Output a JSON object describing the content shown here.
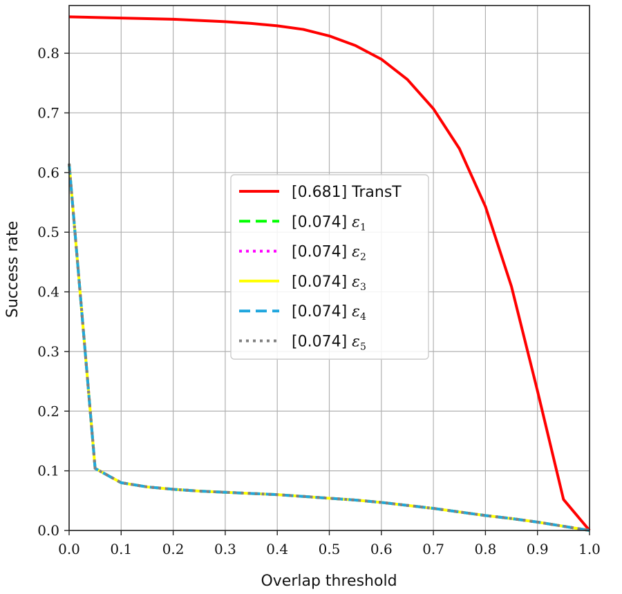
{
  "chart_data": {
    "type": "line",
    "xlabel": "Overlap threshold",
    "ylabel": "Success rate",
    "xlim": [
      0.0,
      1.0
    ],
    "ylim": [
      0.0,
      0.88
    ],
    "grid": true,
    "legend_position": "center-right",
    "x_ticks": [
      "0.0",
      "0.1",
      "0.2",
      "0.3",
      "0.4",
      "0.5",
      "0.6",
      "0.7",
      "0.8",
      "0.9",
      "1.0"
    ],
    "y_ticks": [
      "0.0",
      "0.1",
      "0.2",
      "0.3",
      "0.4",
      "0.5",
      "0.6",
      "0.7",
      "0.8"
    ],
    "x": [
      0.0,
      0.05,
      0.1,
      0.15,
      0.2,
      0.25,
      0.3,
      0.35,
      0.4,
      0.45,
      0.5,
      0.55,
      0.6,
      0.65,
      0.7,
      0.75,
      0.8,
      0.85,
      0.9,
      0.95,
      1.0
    ],
    "series": [
      {
        "name": "[0.681] TransT",
        "color": "#ff0000",
        "style": "solid",
        "values": [
          0.861,
          0.86,
          0.859,
          0.858,
          0.857,
          0.855,
          0.853,
          0.85,
          0.846,
          0.84,
          0.829,
          0.813,
          0.79,
          0.756,
          0.707,
          0.64,
          0.543,
          0.409,
          0.234,
          0.052,
          0.0
        ]
      },
      {
        "name": "[0.074] ε1",
        "label_prefix": "[0.074] ",
        "symbol": "ε",
        "subscript": "1",
        "color": "#00ff00",
        "style": "dashed",
        "values": [
          0.615,
          0.104,
          0.08,
          0.073,
          0.069,
          0.066,
          0.064,
          0.062,
          0.06,
          0.057,
          0.054,
          0.051,
          0.047,
          0.042,
          0.037,
          0.031,
          0.025,
          0.02,
          0.014,
          0.007,
          0.0
        ]
      },
      {
        "name": "[0.074] ε2",
        "label_prefix": "[0.074] ",
        "symbol": "ε",
        "subscript": "2",
        "color": "#ff00ff",
        "style": "dotted",
        "values": [
          0.615,
          0.104,
          0.08,
          0.073,
          0.069,
          0.066,
          0.064,
          0.062,
          0.06,
          0.057,
          0.054,
          0.051,
          0.047,
          0.042,
          0.037,
          0.031,
          0.025,
          0.02,
          0.014,
          0.007,
          0.0
        ]
      },
      {
        "name": "[0.074] ε3",
        "label_prefix": "[0.074] ",
        "symbol": "ε",
        "subscript": "3",
        "color": "#ffff00",
        "style": "solid",
        "values": [
          0.615,
          0.104,
          0.08,
          0.073,
          0.069,
          0.066,
          0.064,
          0.062,
          0.06,
          0.057,
          0.054,
          0.051,
          0.047,
          0.042,
          0.037,
          0.031,
          0.025,
          0.02,
          0.014,
          0.007,
          0.0
        ]
      },
      {
        "name": "[0.074] ε4",
        "label_prefix": "[0.074] ",
        "symbol": "ε",
        "subscript": "4",
        "color": "#1fa6de",
        "style": "dashed",
        "values": [
          0.615,
          0.104,
          0.08,
          0.073,
          0.069,
          0.066,
          0.064,
          0.062,
          0.06,
          0.057,
          0.054,
          0.051,
          0.047,
          0.042,
          0.037,
          0.031,
          0.025,
          0.02,
          0.014,
          0.007,
          0.0
        ]
      },
      {
        "name": "[0.074] ε5",
        "label_prefix": "[0.074] ",
        "symbol": "ε",
        "subscript": "5",
        "color": "#808080",
        "style": "dotted",
        "values": [
          0.615,
          0.104,
          0.08,
          0.073,
          0.069,
          0.066,
          0.064,
          0.062,
          0.06,
          0.057,
          0.054,
          0.051,
          0.047,
          0.042,
          0.037,
          0.031,
          0.025,
          0.02,
          0.014,
          0.007,
          0.0
        ]
      }
    ]
  }
}
